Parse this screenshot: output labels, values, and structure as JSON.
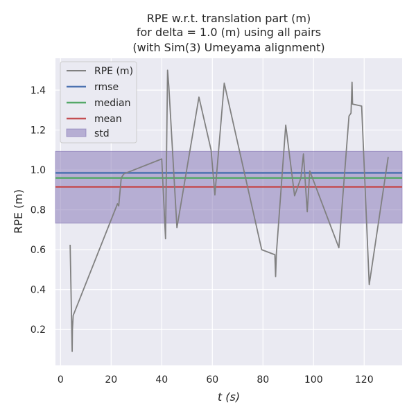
{
  "chart_data": {
    "type": "line",
    "title_lines": [
      "RPE w.r.t. translation part (m)",
      "for delta = 1.0 (m) using all pairs",
      "(with Sim(3) Umeyama alignment)"
    ],
    "xlabel": "t (s)",
    "ylabel": "RPE (m)",
    "xlim": [
      -2,
      135
    ],
    "ylim": [
      0.02,
      1.56
    ],
    "xticks": [
      0,
      20,
      40,
      60,
      80,
      100,
      120
    ],
    "yticks": [
      0.2,
      0.4,
      0.6,
      0.8,
      1.0,
      1.2,
      1.4
    ],
    "xtick_labels": [
      "0",
      "20",
      "40",
      "60",
      "80",
      "100",
      "120"
    ],
    "ytick_labels": [
      "0.2",
      "0.4",
      "0.6",
      "0.8",
      "1.0",
      "1.2",
      "1.4"
    ],
    "grid": true,
    "legend_position": "upper-left",
    "series": [
      {
        "name": "RPE (m)",
        "color": "#808080",
        "x": [
          3.8,
          4.6,
          4.7,
          5.0,
          22.5,
          23.0,
          24.0,
          25.0,
          40.0,
          41.5,
          42.3,
          42.8,
          46.0,
          54.7,
          59.5,
          61.0,
          64.7,
          79.5,
          84.7,
          85.0,
          85.3,
          89.0,
          92.5,
          95.0,
          96.0,
          97.5,
          98.5,
          110.0,
          114.0,
          114.8,
          115.2,
          115.4,
          119.0,
          122.0,
          129.5
        ],
        "y": [
          0.625,
          0.09,
          0.2,
          0.27,
          0.83,
          0.82,
          0.96,
          0.98,
          1.055,
          0.655,
          1.5,
          1.42,
          0.71,
          1.365,
          1.1,
          0.875,
          1.435,
          0.6,
          0.575,
          0.465,
          0.58,
          1.225,
          0.87,
          0.96,
          1.08,
          0.79,
          0.995,
          0.61,
          1.27,
          1.285,
          1.44,
          1.33,
          1.32,
          0.425,
          1.065
        ]
      }
    ],
    "stats": {
      "rmse": {
        "name": "rmse",
        "value": 0.985,
        "color": "#4c72b0"
      },
      "median": {
        "name": "median",
        "value": 0.96,
        "color": "#55a868"
      },
      "mean": {
        "name": "mean",
        "value": 0.915,
        "color": "#c44e52"
      },
      "std": {
        "name": "std",
        "low": 0.733,
        "high": 1.093,
        "color": "#8172b3"
      }
    }
  }
}
